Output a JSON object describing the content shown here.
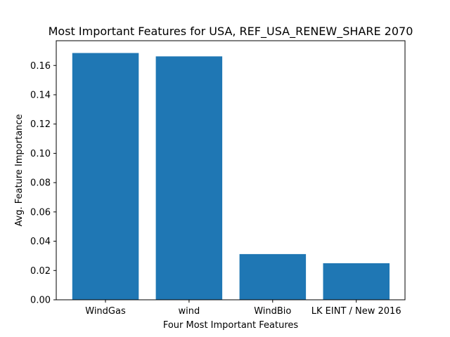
{
  "chart_data": {
    "type": "bar",
    "title": "Most Important Features for USA, REF_USA_RENEW_SHARE 2070",
    "xlabel": "Four Most Important Features",
    "ylabel": "Avg. Feature Importance",
    "categories": [
      "WindGas",
      "wind",
      "WindBio",
      "LK EINT / New 2016"
    ],
    "values": [
      0.1685,
      0.1662,
      0.0312,
      0.025
    ],
    "ylim": [
      0,
      0.1769
    ],
    "yticks": [
      "0.00",
      "0.02",
      "0.04",
      "0.06",
      "0.08",
      "0.10",
      "0.12",
      "0.14",
      "0.16"
    ],
    "bar_color": "#1f77b4",
    "grid": false,
    "legend": "none"
  }
}
